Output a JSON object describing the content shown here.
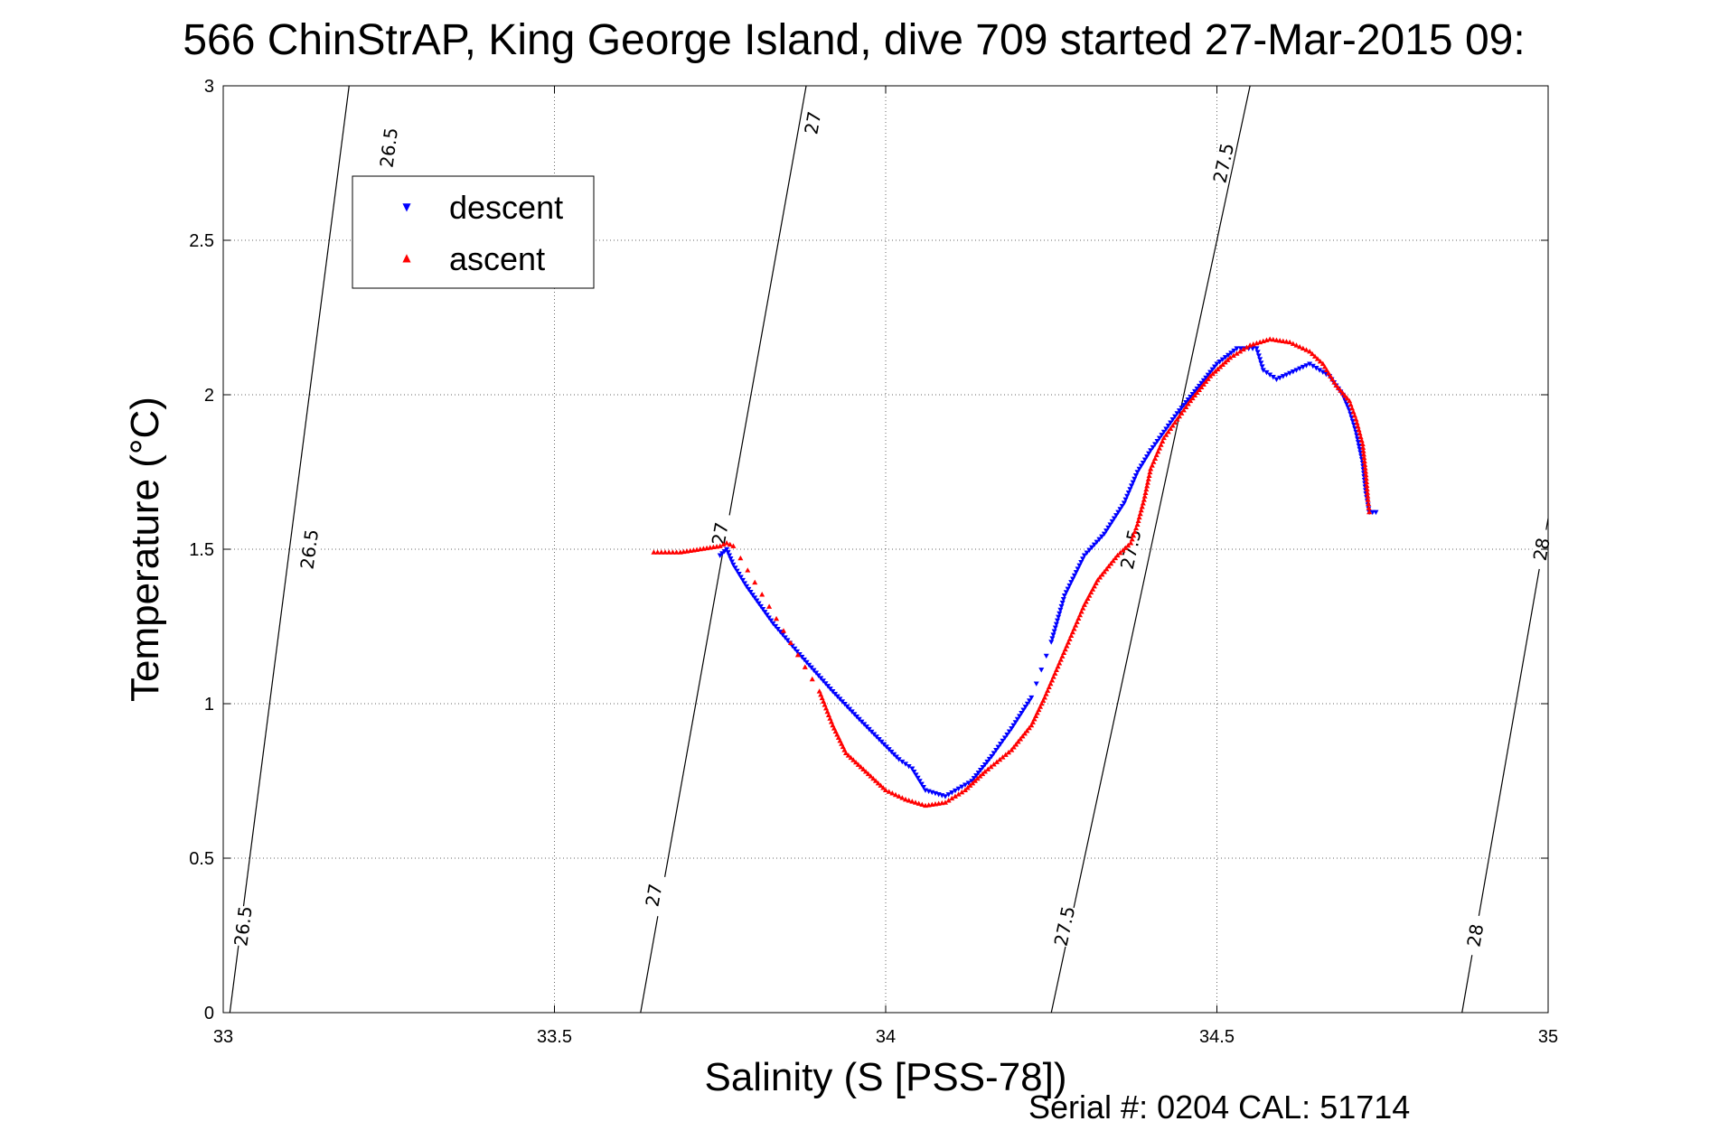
{
  "title": "566 ChinStrAP, King George Island, dive 709 started 27-Mar-2015 09:",
  "footer": "Serial #: 0204  CAL: 51714",
  "chart_data": {
    "type": "scatter",
    "title": "566 ChinStrAP, King George Island, dive 709 started 27-Mar-2015 09:",
    "xlabel": "Salinity (S [PSS-78])",
    "ylabel": "Temperature (°C)",
    "xlim": [
      33,
      35
    ],
    "ylim": [
      0,
      3
    ],
    "x_ticks": [
      "33",
      "33.5",
      "34",
      "34.5",
      "35"
    ],
    "y_ticks": [
      "0",
      "0.5",
      "1",
      "1.5",
      "2",
      "2.5",
      "3"
    ],
    "grid": true,
    "legend_position": "top-left",
    "density_contours": [
      {
        "label": "26.5",
        "points": [
          [
            33.01,
            0.0
          ],
          [
            33.19,
            3.0
          ]
        ],
        "label_positions": [
          [
            33.03,
            0.28
          ],
          [
            33.13,
            1.5
          ],
          [
            33.25,
            2.8
          ]
        ]
      },
      {
        "label": "27",
        "points": [
          [
            33.63,
            0.0
          ],
          [
            33.88,
            3.0
          ]
        ],
        "label_positions": [
          [
            33.65,
            0.38
          ],
          [
            33.75,
            1.55
          ],
          [
            33.89,
            2.88
          ]
        ]
      },
      {
        "label": "27.5",
        "points": [
          [
            34.25,
            0.0
          ],
          [
            34.55,
            3.0
          ]
        ],
        "label_positions": [
          [
            34.27,
            0.28
          ],
          [
            34.37,
            1.5
          ],
          [
            34.51,
            2.75
          ]
        ]
      },
      {
        "label": "28",
        "points": [
          [
            34.87,
            0.0
          ],
          [
            35.0,
            1.6
          ]
        ],
        "label_positions": [
          [
            34.89,
            0.25
          ],
          [
            34.99,
            1.5
          ]
        ]
      }
    ],
    "series": [
      {
        "name": "descent",
        "color": "#0000ff",
        "marker": "triangle-down",
        "points": [
          [
            33.75,
            1.48
          ],
          [
            33.76,
            1.5
          ],
          [
            33.77,
            1.45
          ],
          [
            33.79,
            1.38
          ],
          [
            33.83,
            1.26
          ],
          [
            33.87,
            1.16
          ],
          [
            33.92,
            1.04
          ],
          [
            33.96,
            0.95
          ],
          [
            34.02,
            0.82
          ],
          [
            34.04,
            0.79
          ],
          [
            34.06,
            0.72
          ],
          [
            34.09,
            0.7
          ],
          [
            34.13,
            0.75
          ],
          [
            34.16,
            0.83
          ],
          [
            34.19,
            0.92
          ],
          [
            34.22,
            1.02
          ],
          [
            34.25,
            1.2
          ],
          [
            34.27,
            1.35
          ],
          [
            34.3,
            1.48
          ],
          [
            34.33,
            1.55
          ],
          [
            34.36,
            1.65
          ],
          [
            34.38,
            1.75
          ],
          [
            34.4,
            1.82
          ],
          [
            34.42,
            1.88
          ],
          [
            34.44,
            1.94
          ],
          [
            34.47,
            2.02
          ],
          [
            34.5,
            2.1
          ],
          [
            34.53,
            2.15
          ],
          [
            34.56,
            2.15
          ],
          [
            34.57,
            2.08
          ],
          [
            34.59,
            2.05
          ],
          [
            34.62,
            2.08
          ],
          [
            34.64,
            2.1
          ],
          [
            34.67,
            2.06
          ],
          [
            34.69,
            2.0
          ],
          [
            34.7,
            1.95
          ],
          [
            34.71,
            1.88
          ],
          [
            34.72,
            1.78
          ],
          [
            34.725,
            1.68
          ],
          [
            34.73,
            1.62
          ],
          [
            34.74,
            1.62
          ]
        ]
      },
      {
        "name": "ascent",
        "color": "#ff0000",
        "marker": "triangle-up",
        "points": [
          [
            33.65,
            1.49
          ],
          [
            33.69,
            1.49
          ],
          [
            33.72,
            1.5
          ],
          [
            33.75,
            1.51
          ],
          [
            33.76,
            1.52
          ],
          [
            33.77,
            1.51
          ],
          [
            33.9,
            1.04
          ],
          [
            33.92,
            0.93
          ],
          [
            33.94,
            0.84
          ],
          [
            33.97,
            0.78
          ],
          [
            34.0,
            0.72
          ],
          [
            34.03,
            0.69
          ],
          [
            34.06,
            0.67
          ],
          [
            34.09,
            0.68
          ],
          [
            34.12,
            0.72
          ],
          [
            34.15,
            0.78
          ],
          [
            34.19,
            0.85
          ],
          [
            34.22,
            0.93
          ],
          [
            34.24,
            1.02
          ],
          [
            34.26,
            1.12
          ],
          [
            34.28,
            1.22
          ],
          [
            34.3,
            1.32
          ],
          [
            34.32,
            1.4
          ],
          [
            34.35,
            1.48
          ],
          [
            34.37,
            1.52
          ],
          [
            34.38,
            1.58
          ],
          [
            34.39,
            1.66
          ],
          [
            34.4,
            1.76
          ],
          [
            34.42,
            1.86
          ],
          [
            34.44,
            1.92
          ],
          [
            34.46,
            1.98
          ],
          [
            34.49,
            2.06
          ],
          [
            34.52,
            2.12
          ],
          [
            34.55,
            2.16
          ],
          [
            34.58,
            2.18
          ],
          [
            34.61,
            2.17
          ],
          [
            34.64,
            2.14
          ],
          [
            34.66,
            2.1
          ],
          [
            34.68,
            2.03
          ],
          [
            34.7,
            1.98
          ],
          [
            34.71,
            1.92
          ],
          [
            34.72,
            1.84
          ],
          [
            34.725,
            1.74
          ],
          [
            34.728,
            1.66
          ],
          [
            34.73,
            1.62
          ]
        ]
      }
    ]
  }
}
